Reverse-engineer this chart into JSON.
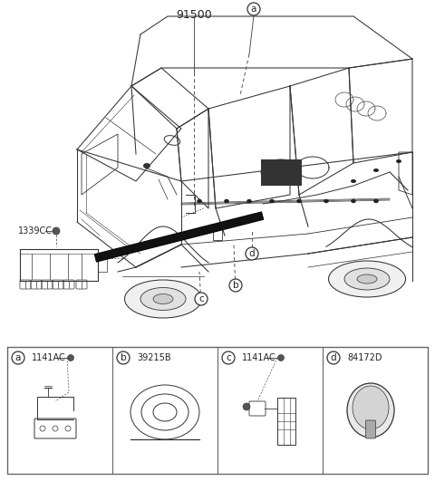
{
  "part_number_main": "91500",
  "background_color": "#ffffff",
  "ref_1339CC": "1339CC",
  "ref_a": "1141AC",
  "ref_b": "39215B",
  "ref_c": "1141AC",
  "ref_d": "84172D",
  "text_color": "#222222",
  "line_color": "#333333",
  "callouts": [
    "a",
    "b",
    "c",
    "d"
  ],
  "figw": 4.8,
  "figh": 5.31,
  "dpi": 100
}
